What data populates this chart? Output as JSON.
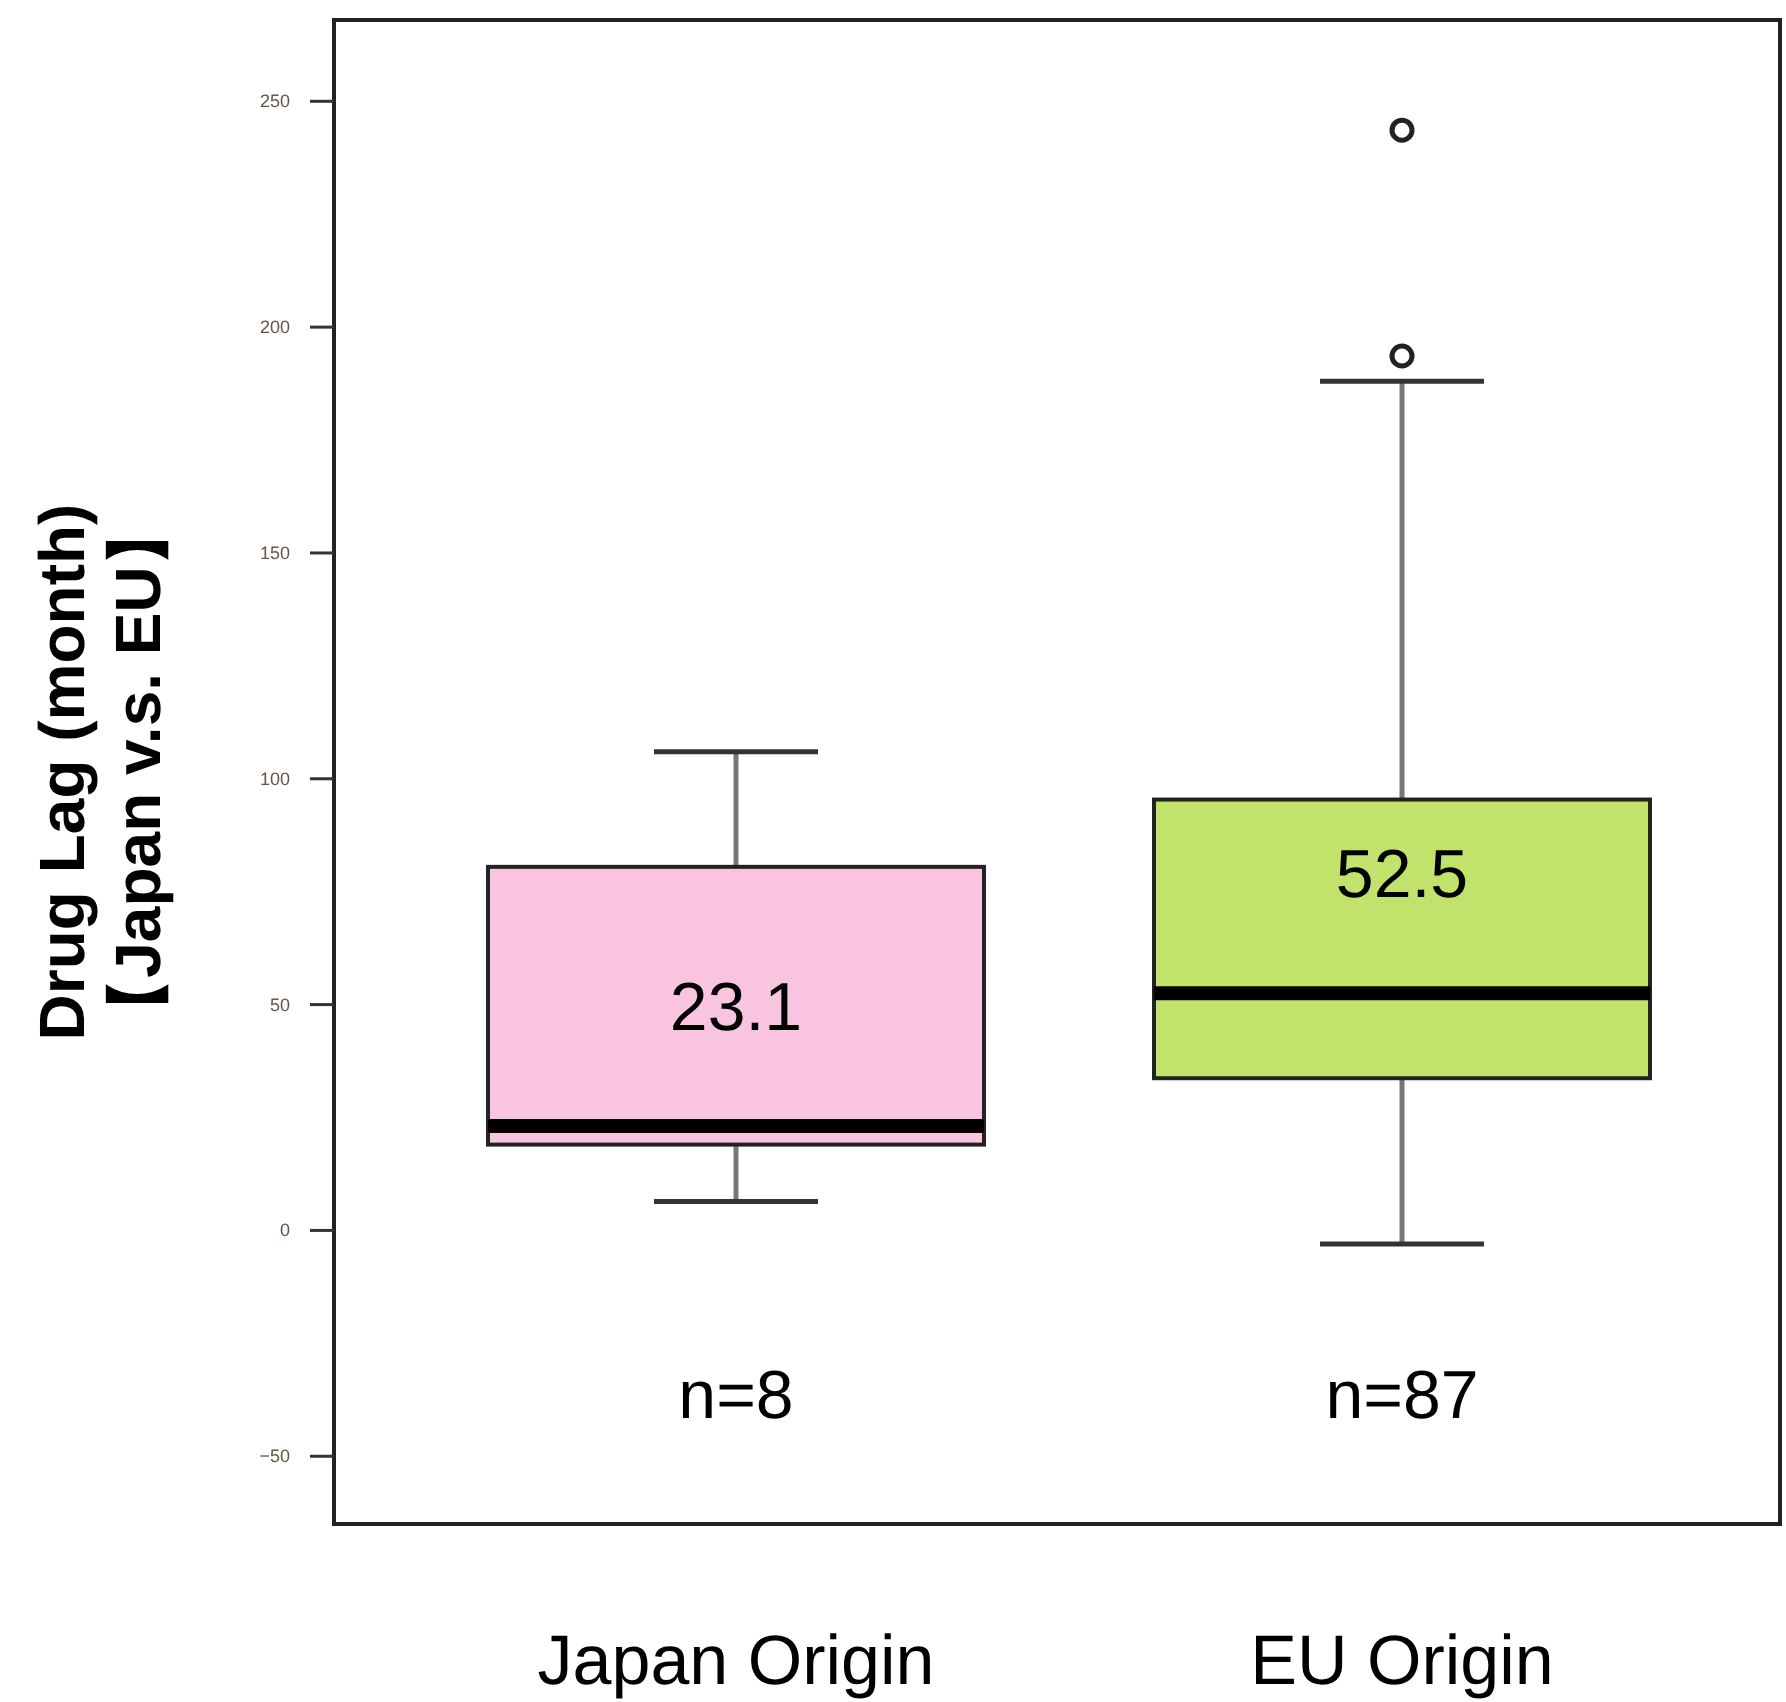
{
  "chart_data": {
    "type": "box",
    "categories": [
      "Japan Origin",
      "EU Origin"
    ],
    "ylabel": "Drug Lag (month)\n【Japan v.s. EU】",
    "colors": [
      "#f9c4df",
      "#c2e36b"
    ],
    "boxes": [
      {
        "low": 6.4,
        "q1": 19,
        "median": 23.1,
        "q3": 80.5,
        "high": 106
      },
      {
        "low": -3,
        "q1": 33.7,
        "median": 52.5,
        "q3": 95.4,
        "high": 188,
        "outliers": [
          243.6,
          193.6
        ]
      }
    ],
    "annotations": [
      {
        "text": "23.1",
        "x": "Japan Origin",
        "y": 23.1
      },
      {
        "text": "52.5",
        "x": "EU Origin",
        "y": 52.5
      },
      "n=8",
      "n=87"
    ],
    "ylim": [
      -65,
      268
    ],
    "yticks": [
      -50,
      0,
      50,
      100,
      150,
      200,
      250
    ]
  }
}
